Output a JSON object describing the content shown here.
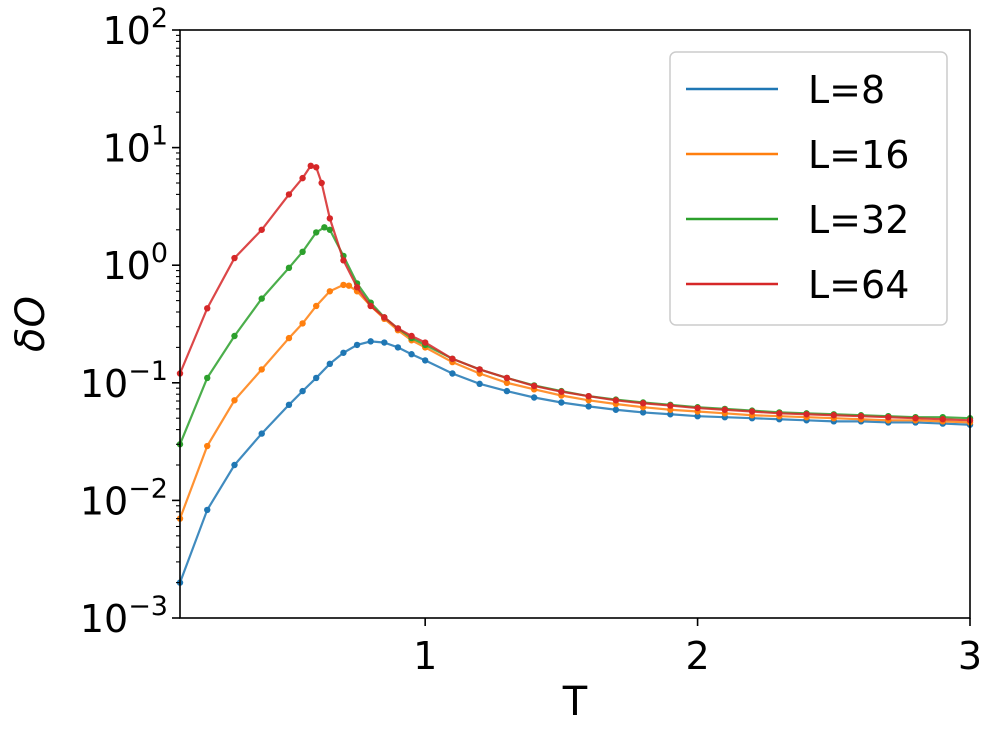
{
  "chart_data": {
    "type": "line",
    "title": "",
    "xlabel": "T",
    "ylabel": "δO",
    "y_scale": "log",
    "grid": false,
    "legend_position": "top-right",
    "xlim": [
      0.1,
      3.0
    ],
    "ylim": [
      0.001,
      100
    ],
    "x_ticks": [
      {
        "value": 1,
        "label": "1"
      },
      {
        "value": 2,
        "label": "2"
      },
      {
        "value": 3,
        "label": "3"
      }
    ],
    "y_ticks": [
      {
        "value": 0.001,
        "base": "10",
        "exp": "−3"
      },
      {
        "value": 0.01,
        "base": "10",
        "exp": "−2"
      },
      {
        "value": 0.1,
        "base": "10",
        "exp": "−1"
      },
      {
        "value": 1,
        "base": "10",
        "exp": "0"
      },
      {
        "value": 10,
        "base": "10",
        "exp": "1"
      },
      {
        "value": 100,
        "base": "10",
        "exp": "2"
      }
    ],
    "series": [
      {
        "name": "L=8",
        "color": "#1f77b4",
        "x": [
          0.1,
          0.2,
          0.3,
          0.4,
          0.5,
          0.55,
          0.6,
          0.65,
          0.7,
          0.75,
          0.8,
          0.85,
          0.9,
          0.95,
          1.0,
          1.1,
          1.2,
          1.3,
          1.4,
          1.5,
          1.6,
          1.7,
          1.8,
          1.9,
          2.0,
          2.1,
          2.2,
          2.3,
          2.4,
          2.5,
          2.6,
          2.7,
          2.8,
          2.9,
          3.0
        ],
        "values": [
          0.002,
          0.0083,
          0.02,
          0.037,
          0.065,
          0.085,
          0.11,
          0.145,
          0.18,
          0.21,
          0.225,
          0.22,
          0.2,
          0.175,
          0.155,
          0.12,
          0.098,
          0.085,
          0.075,
          0.068,
          0.063,
          0.059,
          0.056,
          0.054,
          0.052,
          0.051,
          0.05,
          0.049,
          0.048,
          0.047,
          0.047,
          0.046,
          0.046,
          0.045,
          0.044
        ]
      },
      {
        "name": "L=16",
        "color": "#ff7f0e",
        "x": [
          0.1,
          0.2,
          0.3,
          0.4,
          0.5,
          0.55,
          0.6,
          0.65,
          0.7,
          0.72,
          0.75,
          0.8,
          0.85,
          0.9,
          0.95,
          1.0,
          1.1,
          1.2,
          1.3,
          1.4,
          1.5,
          1.6,
          1.7,
          1.8,
          1.9,
          2.0,
          2.1,
          2.2,
          2.3,
          2.4,
          2.5,
          2.6,
          2.7,
          2.8,
          2.9,
          3.0
        ],
        "values": [
          0.007,
          0.029,
          0.071,
          0.13,
          0.24,
          0.32,
          0.45,
          0.6,
          0.68,
          0.67,
          0.6,
          0.45,
          0.35,
          0.28,
          0.23,
          0.2,
          0.15,
          0.12,
          0.1,
          0.088,
          0.078,
          0.071,
          0.066,
          0.062,
          0.059,
          0.057,
          0.055,
          0.053,
          0.052,
          0.051,
          0.05,
          0.049,
          0.048,
          0.048,
          0.047,
          0.046
        ]
      },
      {
        "name": "L=32",
        "color": "#2ca02c",
        "x": [
          0.1,
          0.2,
          0.3,
          0.4,
          0.5,
          0.55,
          0.6,
          0.63,
          0.65,
          0.7,
          0.75,
          0.8,
          0.85,
          0.9,
          0.95,
          1.0,
          1.1,
          1.2,
          1.3,
          1.4,
          1.5,
          1.6,
          1.7,
          1.8,
          1.9,
          2.0,
          2.1,
          2.2,
          2.3,
          2.4,
          2.5,
          2.6,
          2.7,
          2.8,
          2.9,
          3.0
        ],
        "values": [
          0.03,
          0.11,
          0.25,
          0.52,
          0.95,
          1.3,
          1.9,
          2.1,
          2.0,
          1.2,
          0.7,
          0.48,
          0.36,
          0.29,
          0.24,
          0.21,
          0.16,
          0.13,
          0.11,
          0.095,
          0.085,
          0.077,
          0.072,
          0.068,
          0.065,
          0.062,
          0.06,
          0.058,
          0.056,
          0.055,
          0.054,
          0.053,
          0.052,
          0.051,
          0.051,
          0.05
        ]
      },
      {
        "name": "L=64",
        "color": "#d62728",
        "x": [
          0.1,
          0.2,
          0.3,
          0.4,
          0.5,
          0.55,
          0.58,
          0.6,
          0.62,
          0.65,
          0.7,
          0.75,
          0.8,
          0.85,
          0.9,
          0.95,
          1.0,
          1.1,
          1.2,
          1.3,
          1.4,
          1.5,
          1.6,
          1.7,
          1.8,
          1.9,
          2.0,
          2.1,
          2.2,
          2.3,
          2.4,
          2.5,
          2.6,
          2.7,
          2.8,
          2.9,
          3.0
        ],
        "values": [
          0.12,
          0.43,
          1.15,
          2.0,
          4.0,
          5.5,
          7.0,
          6.8,
          5.0,
          2.5,
          1.1,
          0.65,
          0.45,
          0.36,
          0.29,
          0.25,
          0.22,
          0.16,
          0.13,
          0.11,
          0.094,
          0.084,
          0.077,
          0.071,
          0.067,
          0.064,
          0.061,
          0.059,
          0.057,
          0.055,
          0.054,
          0.053,
          0.052,
          0.051,
          0.05,
          0.049,
          0.048
        ]
      }
    ]
  }
}
